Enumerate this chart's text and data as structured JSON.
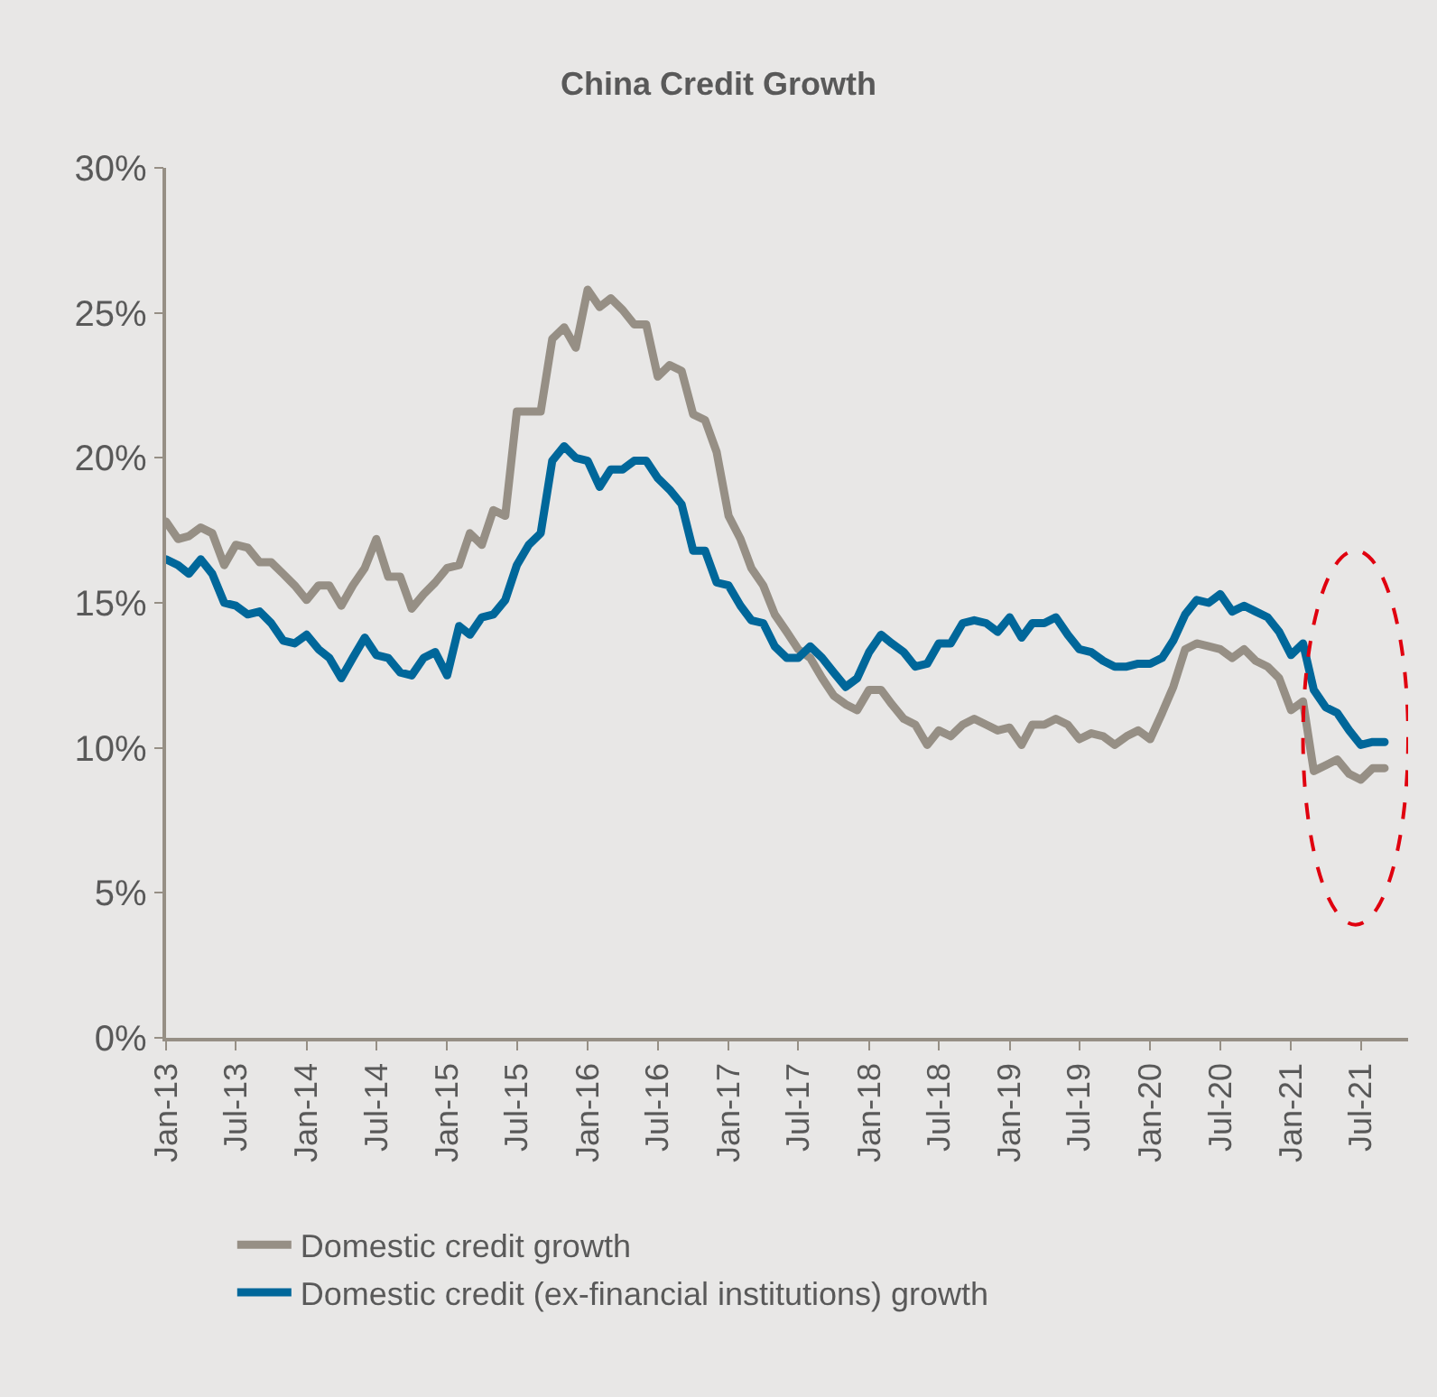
{
  "chart_data": {
    "type": "line",
    "title": "China Credit Growth",
    "x": [
      "2013-01",
      "2013-02",
      "2013-03",
      "2013-04",
      "2013-05",
      "2013-06",
      "2013-07",
      "2013-08",
      "2013-09",
      "2013-10",
      "2013-11",
      "2013-12",
      "2014-01",
      "2014-02",
      "2014-03",
      "2014-04",
      "2014-05",
      "2014-06",
      "2014-07",
      "2014-08",
      "2014-09",
      "2014-10",
      "2014-11",
      "2014-12",
      "2015-01",
      "2015-02",
      "2015-03",
      "2015-04",
      "2015-05",
      "2015-06",
      "2015-07",
      "2015-08",
      "2015-09",
      "2015-10",
      "2015-11",
      "2015-12",
      "2016-01",
      "2016-02",
      "2016-03",
      "2016-04",
      "2016-05",
      "2016-06",
      "2016-07",
      "2016-08",
      "2016-09",
      "2016-10",
      "2016-11",
      "2016-12",
      "2017-01",
      "2017-02",
      "2017-03",
      "2017-04",
      "2017-05",
      "2017-06",
      "2017-07",
      "2017-08",
      "2017-09",
      "2017-10",
      "2017-11",
      "2017-12",
      "2018-01",
      "2018-02",
      "2018-03",
      "2018-04",
      "2018-05",
      "2018-06",
      "2018-07",
      "2018-08",
      "2018-09",
      "2018-10",
      "2018-11",
      "2018-12",
      "2019-01",
      "2019-02",
      "2019-03",
      "2019-04",
      "2019-05",
      "2019-06",
      "2019-07",
      "2019-08",
      "2019-09",
      "2019-10",
      "2019-11",
      "2019-12",
      "2020-01",
      "2020-02",
      "2020-03",
      "2020-04",
      "2020-05",
      "2020-06",
      "2020-07",
      "2020-08",
      "2020-09",
      "2020-10",
      "2020-11",
      "2020-12",
      "2021-01",
      "2021-02",
      "2021-03",
      "2021-04",
      "2021-05",
      "2021-06",
      "2021-07",
      "2021-08",
      "2021-09"
    ],
    "series": [
      {
        "name": "Domestic credit growth",
        "color": "#968f85",
        "values": [
          17.8,
          17.2,
          17.3,
          17.6,
          17.4,
          16.3,
          17.0,
          16.9,
          16.4,
          16.4,
          16.0,
          15.6,
          15.1,
          15.6,
          15.6,
          14.9,
          15.6,
          16.2,
          17.2,
          15.9,
          15.9,
          14.8,
          15.3,
          15.7,
          16.2,
          16.3,
          17.4,
          17.0,
          18.2,
          18.0,
          21.6,
          21.6,
          21.6,
          24.1,
          24.5,
          23.8,
          25.8,
          25.2,
          25.5,
          25.1,
          24.6,
          24.6,
          22.8,
          23.2,
          23.0,
          21.5,
          21.3,
          20.2,
          18.0,
          17.2,
          16.2,
          15.6,
          14.6,
          14.0,
          13.4,
          13.1,
          12.4,
          11.8,
          11.5,
          11.3,
          12.0,
          12.0,
          11.5,
          11.0,
          10.8,
          10.1,
          10.6,
          10.4,
          10.8,
          11.0,
          10.8,
          10.6,
          10.7,
          10.1,
          10.8,
          10.8,
          11.0,
          10.8,
          10.3,
          10.5,
          10.4,
          10.1,
          10.4,
          10.6,
          10.3,
          11.2,
          12.1,
          13.4,
          13.6,
          13.5,
          13.4,
          13.1,
          13.4,
          13.0,
          12.8,
          12.4,
          11.3,
          11.6,
          9.2,
          9.4,
          9.6,
          9.1,
          8.9,
          9.3,
          9.3
        ]
      },
      {
        "name": "Domestic credit (ex-financial institutions) growth",
        "color": "#00679a",
        "values": [
          16.5,
          16.3,
          16.0,
          16.5,
          16.0,
          15.0,
          14.9,
          14.6,
          14.7,
          14.3,
          13.7,
          13.6,
          13.9,
          13.4,
          13.1,
          12.4,
          13.1,
          13.8,
          13.2,
          13.1,
          12.6,
          12.5,
          13.1,
          13.3,
          12.5,
          14.2,
          13.9,
          14.5,
          14.6,
          15.1,
          16.3,
          17.0,
          17.4,
          19.9,
          20.4,
          20.0,
          19.9,
          19.0,
          19.6,
          19.6,
          19.9,
          19.9,
          19.3,
          18.9,
          18.4,
          16.8,
          16.8,
          15.7,
          15.6,
          14.9,
          14.4,
          14.3,
          13.5,
          13.1,
          13.1,
          13.5,
          13.1,
          12.6,
          12.1,
          12.4,
          13.3,
          13.9,
          13.6,
          13.3,
          12.8,
          12.9,
          13.6,
          13.6,
          14.3,
          14.4,
          14.3,
          14.0,
          14.5,
          13.8,
          14.3,
          14.3,
          14.5,
          13.9,
          13.4,
          13.3,
          13.0,
          12.8,
          12.8,
          12.9,
          12.9,
          13.1,
          13.7,
          14.6,
          15.1,
          15.0,
          15.3,
          14.7,
          14.9,
          14.7,
          14.5,
          14.0,
          13.2,
          13.6,
          12.0,
          11.4,
          11.2,
          10.6,
          10.1,
          10.2,
          10.2
        ]
      }
    ],
    "xlim": [
      "2013-01",
      "2021-11"
    ],
    "xticks": [
      {
        "value": "2013-01",
        "label": "Jan-13"
      },
      {
        "value": "2013-07",
        "label": "Jul-13"
      },
      {
        "value": "2014-01",
        "label": "Jan-14"
      },
      {
        "value": "2014-07",
        "label": "Jul-14"
      },
      {
        "value": "2015-01",
        "label": "Jan-15"
      },
      {
        "value": "2015-07",
        "label": "Jul-15"
      },
      {
        "value": "2016-01",
        "label": "Jan-16"
      },
      {
        "value": "2016-07",
        "label": "Jul-16"
      },
      {
        "value": "2017-01",
        "label": "Jan-17"
      },
      {
        "value": "2017-07",
        "label": "Jul-17"
      },
      {
        "value": "2018-01",
        "label": "Jan-18"
      },
      {
        "value": "2018-07",
        "label": "Jul-18"
      },
      {
        "value": "2019-01",
        "label": "Jan-19"
      },
      {
        "value": "2019-07",
        "label": "Jul-19"
      },
      {
        "value": "2020-01",
        "label": "Jan-20"
      },
      {
        "value": "2020-07",
        "label": "Jul-20"
      },
      {
        "value": "2021-01",
        "label": "Jan-21"
      },
      {
        "value": "2021-07",
        "label": "Jul-21"
      }
    ],
    "ylim": [
      0,
      30
    ],
    "yticks": [
      {
        "value": 0,
        "label": "0%"
      },
      {
        "value": 5,
        "label": "5%"
      },
      {
        "value": 10,
        "label": "10%"
      },
      {
        "value": 15,
        "label": "15%"
      },
      {
        "value": 20,
        "label": "20%"
      },
      {
        "value": 25,
        "label": "25%"
      },
      {
        "value": 30,
        "label": "30%"
      }
    ],
    "grid": false,
    "legend": "bottom",
    "marker": "none",
    "line_style": "solid"
  }
}
